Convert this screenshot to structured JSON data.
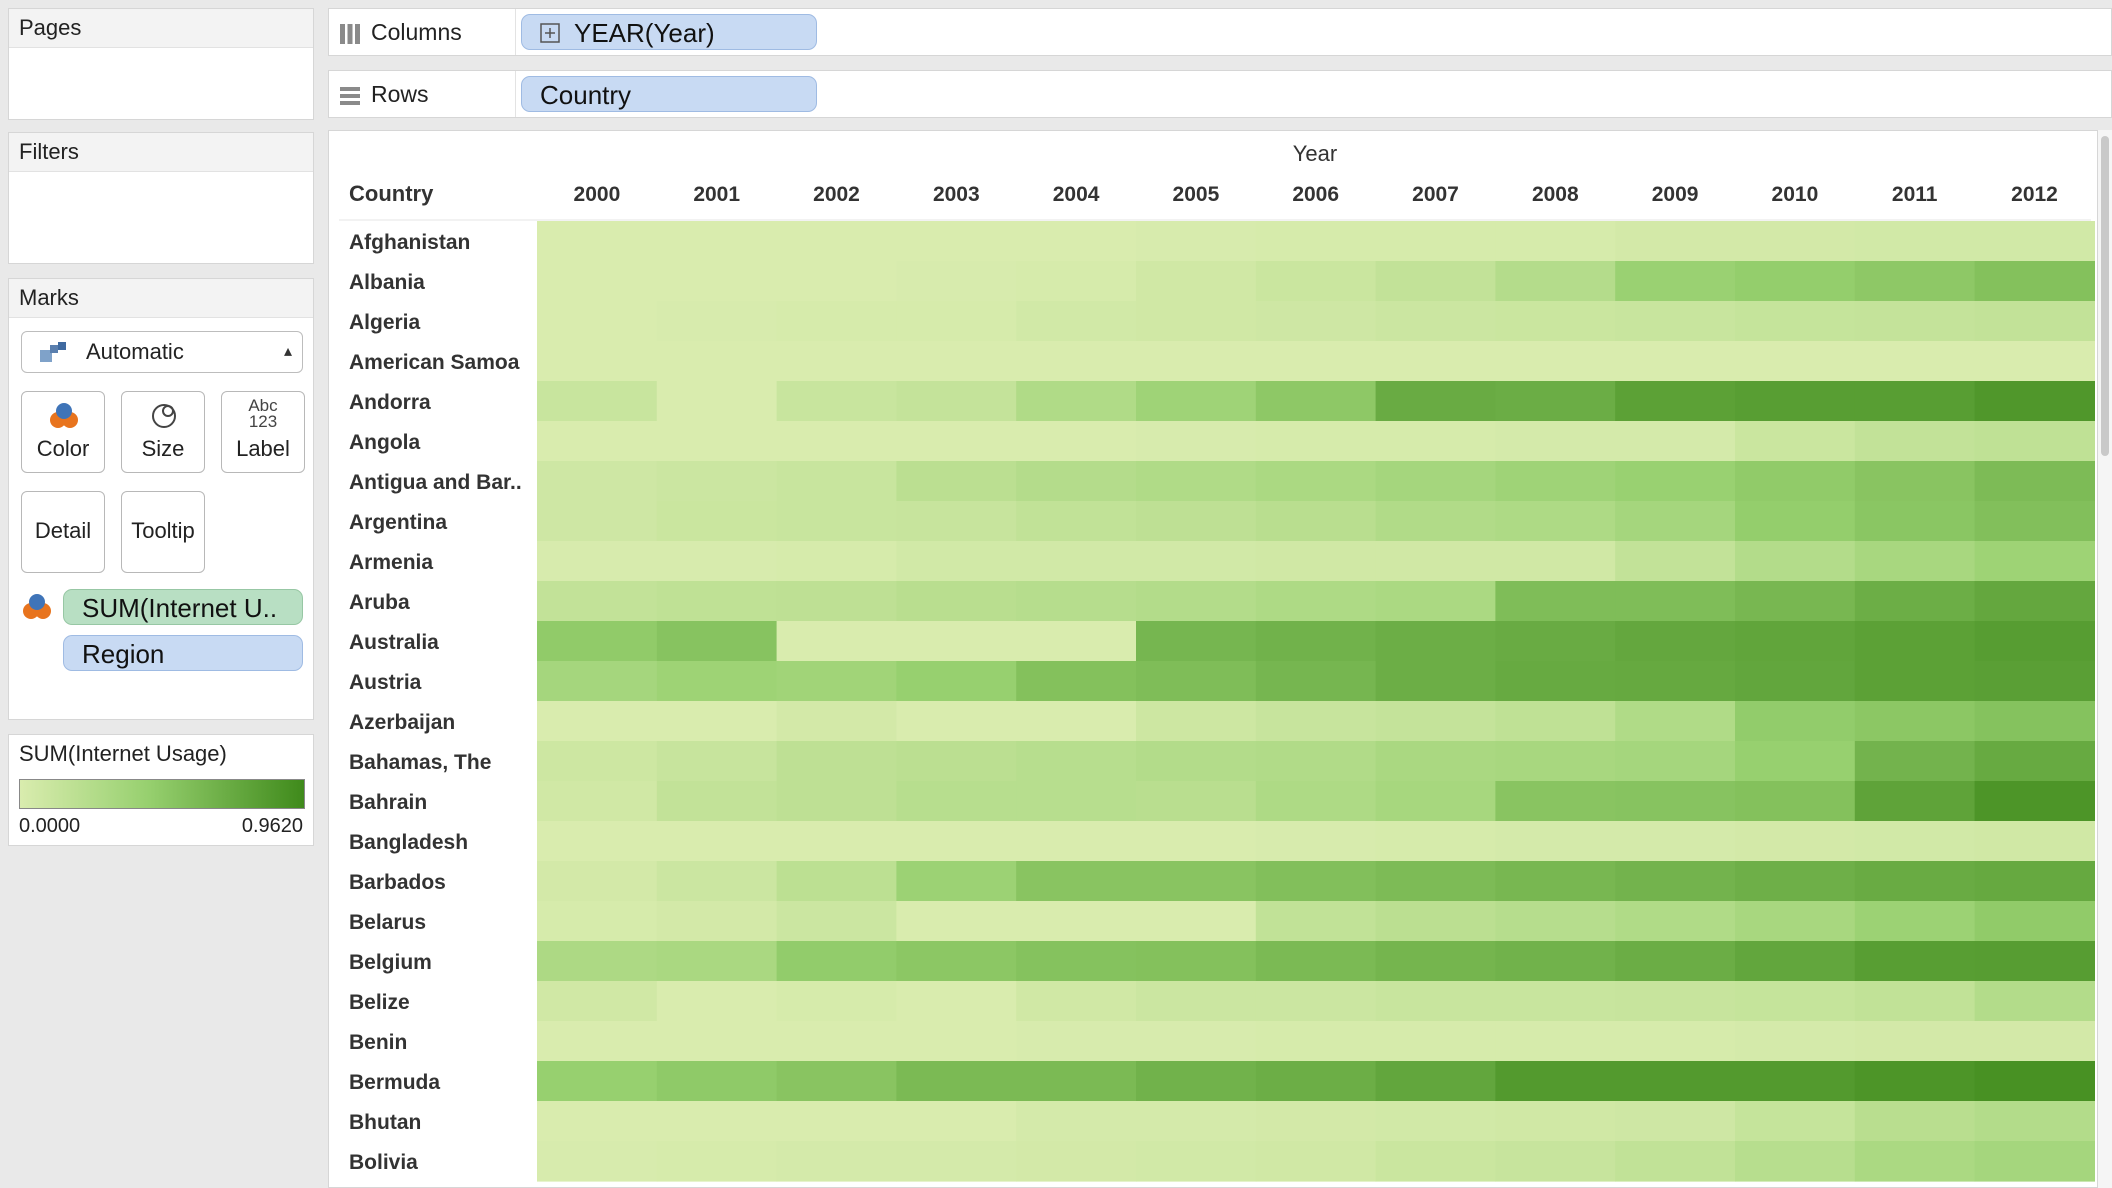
{
  "shelves": {
    "columns_label": "Columns",
    "columns_pill": "YEAR(Year)",
    "rows_label": "Rows",
    "rows_pill": "Country"
  },
  "panels": {
    "pages_title": "Pages",
    "filters_title": "Filters",
    "marks_title": "Marks"
  },
  "marks": {
    "mark_type": "Automatic",
    "color_label": "Color",
    "size_label": "Size",
    "label_label": "Label",
    "label_icon_text": "Abc 123",
    "detail_label": "Detail",
    "tooltip_label": "Tooltip",
    "color_field": "SUM(Internet U..",
    "detail_field": "Region"
  },
  "legend": {
    "title": "SUM(Internet Usage)",
    "min_label": "0.0000",
    "max_label": "0.9620",
    "color_low": "#d9ecae",
    "color_mid": "#97d06f",
    "color_high": "#3f8a1b"
  },
  "chart_data": {
    "type": "heatmap",
    "column_header": "Year",
    "row_header": "Country",
    "x": [
      "2000",
      "2001",
      "2002",
      "2003",
      "2004",
      "2005",
      "2006",
      "2007",
      "2008",
      "2009",
      "2010",
      "2011",
      "2012"
    ],
    "y": [
      "Afghanistan",
      "Albania",
      "Algeria",
      "American Samoa",
      "Andorra",
      "Angola",
      "Antigua and Bar..",
      "Argentina",
      "Armenia",
      "Aruba",
      "Australia",
      "Austria",
      "Azerbaijan",
      "Bahamas, The",
      "Bahrain",
      "Bangladesh",
      "Barbados",
      "Belarus",
      "Belgium",
      "Belize",
      "Benin",
      "Bermuda",
      "Bhutan",
      "Bolivia"
    ],
    "value_range": [
      0.0,
      0.962
    ],
    "values": [
      [
        0.0,
        0.0,
        0.0,
        0.0,
        0.0,
        0.01,
        0.02,
        0.02,
        0.02,
        0.04,
        0.04,
        0.05,
        0.05
      ],
      [
        0.0,
        0.0,
        0.0,
        0.01,
        0.02,
        0.06,
        0.1,
        0.15,
        0.24,
        0.41,
        0.45,
        0.49,
        0.55
      ],
      [
        0.0,
        0.01,
        0.02,
        0.02,
        0.05,
        0.06,
        0.07,
        0.09,
        0.1,
        0.11,
        0.13,
        0.14,
        0.15
      ],
      [
        0.0,
        0.0,
        0.0,
        0.0,
        0.0,
        0.0,
        0.0,
        0.0,
        0.0,
        0.0,
        0.0,
        0.0,
        0.0
      ],
      [
        0.11,
        0.0,
        0.11,
        0.14,
        0.27,
        0.38,
        0.49,
        0.71,
        0.7,
        0.79,
        0.81,
        0.81,
        0.86
      ],
      [
        0.0,
        0.0,
        0.0,
        0.0,
        0.0,
        0.01,
        0.02,
        0.02,
        0.03,
        0.03,
        0.1,
        0.15,
        0.17
      ],
      [
        0.07,
        0.09,
        0.11,
        0.2,
        0.24,
        0.27,
        0.3,
        0.34,
        0.38,
        0.42,
        0.47,
        0.52,
        0.59
      ],
      [
        0.07,
        0.1,
        0.11,
        0.12,
        0.16,
        0.18,
        0.21,
        0.26,
        0.28,
        0.34,
        0.45,
        0.51,
        0.56
      ],
      [
        0.01,
        0.01,
        0.02,
        0.05,
        0.05,
        0.05,
        0.06,
        0.06,
        0.06,
        0.15,
        0.25,
        0.32,
        0.39
      ],
      [
        0.15,
        0.17,
        0.18,
        0.21,
        0.23,
        0.25,
        0.28,
        0.3,
        0.58,
        0.58,
        0.62,
        0.69,
        0.74
      ],
      [
        0.47,
        0.53,
        0.0,
        0.0,
        0.0,
        0.63,
        0.66,
        0.69,
        0.71,
        0.74,
        0.76,
        0.79,
        0.82
      ],
      [
        0.34,
        0.39,
        0.37,
        0.43,
        0.55,
        0.58,
        0.63,
        0.69,
        0.72,
        0.73,
        0.75,
        0.79,
        0.8
      ],
      [
        0.0,
        0.0,
        0.04,
        0.0,
        0.0,
        0.08,
        0.12,
        0.14,
        0.17,
        0.27,
        0.46,
        0.5,
        0.54
      ],
      [
        0.08,
        0.12,
        0.18,
        0.2,
        0.22,
        0.25,
        0.26,
        0.31,
        0.32,
        0.34,
        0.43,
        0.65,
        0.72
      ],
      [
        0.06,
        0.15,
        0.18,
        0.22,
        0.22,
        0.21,
        0.28,
        0.33,
        0.52,
        0.53,
        0.55,
        0.77,
        0.88
      ],
      [
        0.0,
        0.0,
        0.0,
        0.0,
        0.0,
        0.0,
        0.01,
        0.02,
        0.03,
        0.03,
        0.04,
        0.05,
        0.06
      ],
      [
        0.04,
        0.09,
        0.19,
        0.4,
        0.52,
        0.52,
        0.56,
        0.59,
        0.62,
        0.65,
        0.68,
        0.71,
        0.73
      ],
      [
        0.02,
        0.04,
        0.09,
        0.0,
        0.0,
        0.0,
        0.16,
        0.2,
        0.23,
        0.27,
        0.32,
        0.4,
        0.47
      ],
      [
        0.29,
        0.31,
        0.46,
        0.5,
        0.54,
        0.55,
        0.6,
        0.64,
        0.66,
        0.7,
        0.75,
        0.81,
        0.82
      ],
      [
        0.06,
        0.0,
        0.02,
        0.0,
        0.06,
        0.09,
        0.09,
        0.11,
        0.11,
        0.12,
        0.13,
        0.16,
        0.25
      ],
      [
        0.0,
        0.0,
        0.0,
        0.0,
        0.01,
        0.01,
        0.02,
        0.02,
        0.02,
        0.02,
        0.03,
        0.04,
        0.04
      ],
      [
        0.43,
        0.48,
        0.52,
        0.6,
        0.6,
        0.66,
        0.69,
        0.75,
        0.84,
        0.84,
        0.84,
        0.88,
        0.91
      ],
      [
        0.0,
        0.0,
        0.0,
        0.0,
        0.03,
        0.03,
        0.04,
        0.05,
        0.06,
        0.07,
        0.13,
        0.21,
        0.25
      ],
      [
        0.01,
        0.02,
        0.03,
        0.03,
        0.04,
        0.05,
        0.06,
        0.1,
        0.12,
        0.16,
        0.22,
        0.3,
        0.34
      ]
    ]
  }
}
